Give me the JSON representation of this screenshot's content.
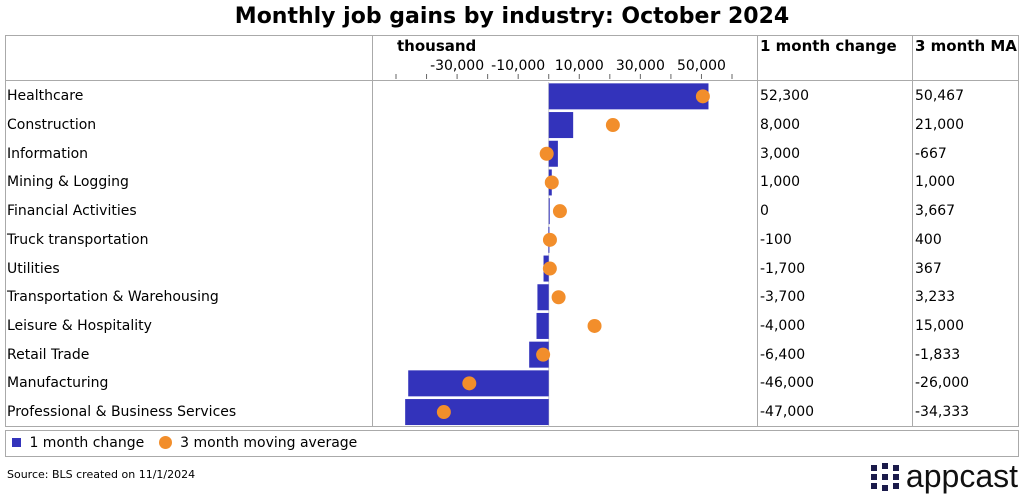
{
  "chart_data": {
    "type": "bar",
    "title": "Monthly job gains by industry: October 2024",
    "xlabel": "thousand",
    "xlim": [
      -50000,
      60000
    ],
    "ticks": [
      -50000,
      -40000,
      -30000,
      -20000,
      -10000,
      0,
      10000,
      20000,
      30000,
      40000,
      50000,
      60000
    ],
    "tick_labels": [
      "-30,000",
      "-10,000",
      "10,000",
      "30,000",
      "50,000"
    ],
    "tick_label_values": [
      -30000,
      -10000,
      10000,
      30000,
      50000
    ],
    "categories": [
      "Healthcare",
      "Construction",
      "Information",
      "Mining & Logging",
      "Financial Activities",
      "Truck transportation",
      "Utilities",
      "Transportation & Warehousing",
      "Leisure & Hospitality",
      "Retail Trade",
      "Manufacturing",
      "Professional & Business Services"
    ],
    "series": [
      {
        "name": "1 month change",
        "type": "bar",
        "color": "#3333bb",
        "values": [
          52300,
          8000,
          3000,
          1000,
          0,
          -100,
          -1700,
          -3700,
          -4000,
          -6400,
          -46000,
          -47000
        ],
        "labels": [
          "52,300",
          "8,000",
          "3,000",
          "1,000",
          "0",
          "-100",
          "-1,700",
          "-3,700",
          "-4,000",
          "-6,400",
          "-46,000",
          "-47,000"
        ]
      },
      {
        "name": "3 month moving average",
        "type": "scatter",
        "color": "#f28e2b",
        "values": [
          50467,
          21000,
          -667,
          1000,
          3667,
          400,
          367,
          3233,
          15000,
          -1833,
          -26000,
          -34333
        ],
        "labels": [
          "50,467",
          "21,000",
          "-667",
          "1,000",
          "3,667",
          "400",
          "367",
          "3,233",
          "15,000",
          "-1,833",
          "-26,000",
          "-34,333"
        ]
      }
    ]
  },
  "headers": {
    "col1": "1 month change",
    "col2": "3 month MA"
  },
  "source": "Source: BLS created on 11/1/2024",
  "logo": "appcast"
}
